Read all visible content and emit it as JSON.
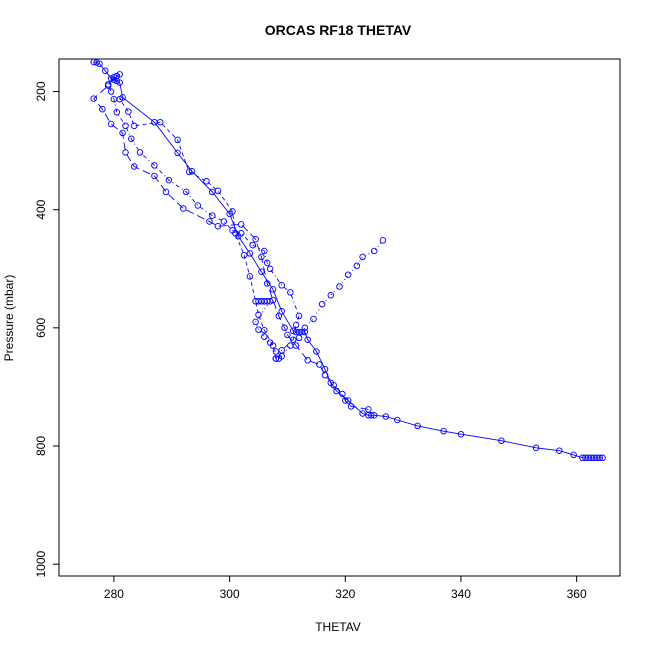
{
  "chart_data": {
    "type": "scatter",
    "title": "ORCAS RF18 THETAV",
    "xlabel": "THETAV",
    "ylabel": "Pressure (mbar)",
    "xlim": [
      270.5,
      367.5
    ],
    "ylim": [
      1020,
      145
    ],
    "y_reversed": true,
    "x_ticks": [
      280,
      300,
      320,
      340,
      360
    ],
    "y_ticks": [
      200,
      400,
      600,
      800,
      1000
    ],
    "x_tick_labels": [
      "280",
      "300",
      "320",
      "340",
      "360"
    ],
    "y_tick_labels": [
      "200",
      "400",
      "600",
      "800",
      "1000"
    ],
    "grid": false,
    "legend": "none",
    "series": [
      {
        "color": "#0000ff",
        "line_style": "solid",
        "marker": "open-circle",
        "points": [
          [
            364.5,
            820
          ],
          [
            364.0,
            820
          ],
          [
            363.5,
            820
          ],
          [
            363.0,
            820
          ],
          [
            362.5,
            820
          ],
          [
            362.0,
            820
          ],
          [
            361.5,
            820
          ],
          [
            361.0,
            820
          ],
          [
            359.5,
            815
          ],
          [
            357.0,
            808
          ],
          [
            353.0,
            803
          ],
          [
            347.0,
            791
          ],
          [
            340.0,
            780
          ],
          [
            337.0,
            775
          ],
          [
            332.5,
            766
          ],
          [
            329.0,
            756
          ],
          [
            327.0,
            750
          ],
          [
            325.0,
            748
          ],
          [
            324.5,
            748
          ],
          [
            324.0,
            748
          ],
          [
            323.0,
            745
          ],
          [
            320.5,
            723
          ],
          [
            318.5,
            707
          ],
          [
            317.5,
            693
          ],
          [
            316.5,
            670
          ],
          [
            315.0,
            640
          ],
          [
            313.5,
            620
          ],
          [
            313.0,
            607
          ],
          [
            312.5,
            607
          ],
          [
            312.0,
            607
          ],
          [
            311.5,
            607
          ],
          [
            311.0,
            605
          ],
          [
            309.0,
            572
          ],
          [
            307.5,
            535
          ],
          [
            305.5,
            505
          ],
          [
            303.5,
            474
          ],
          [
            301.5,
            445
          ],
          [
            300.0,
            407
          ],
          [
            297.0,
            370
          ],
          [
            293.5,
            335
          ],
          [
            291.0,
            304
          ],
          [
            287.0,
            252
          ],
          [
            281.5,
            210
          ],
          [
            281.0,
            185
          ],
          [
            280.5,
            182
          ],
          [
            280.0,
            180
          ],
          [
            279.5,
            178
          ],
          [
            278.5,
            165
          ],
          [
            277.5,
            153
          ],
          [
            277.0,
            151
          ],
          [
            276.5,
            150
          ]
        ]
      },
      {
        "color": "#0000ff",
        "line_style": "dashed",
        "marker": "open-circle",
        "points": [
          [
            308.0,
            652
          ],
          [
            307.5,
            630
          ],
          [
            306.0,
            604
          ],
          [
            305.0,
            578
          ],
          [
            304.5,
            555
          ],
          [
            303.5,
            513
          ],
          [
            302.5,
            477
          ],
          [
            301.0,
            440
          ],
          [
            300.5,
            403
          ],
          [
            298.0,
            368
          ],
          [
            296.0,
            352
          ],
          [
            293.0,
            336
          ],
          [
            291.0,
            282
          ],
          [
            288.0,
            252
          ],
          [
            283.5,
            258
          ],
          [
            282.5,
            234
          ],
          [
            281.0,
            213
          ]
        ]
      },
      {
        "color": "#0000ff",
        "line_style": "longdash",
        "marker": "open-circle",
        "points": [
          [
            324.0,
            738
          ],
          [
            321.0,
            733
          ],
          [
            320.0,
            723
          ],
          [
            319.5,
            712
          ],
          [
            318.0,
            697
          ],
          [
            316.5,
            680
          ],
          [
            315.5,
            662
          ],
          [
            313.5,
            655
          ],
          [
            311.5,
            630
          ],
          [
            310.0,
            612
          ],
          [
            309.5,
            600
          ],
          [
            308.5,
            580
          ],
          [
            307.5,
            553
          ],
          [
            306.5,
            525
          ],
          [
            305.5,
            480
          ],
          [
            304.5,
            450
          ],
          [
            302.0,
            425
          ],
          [
            298.0,
            428
          ],
          [
            296.5,
            420
          ],
          [
            292.0,
            398
          ],
          [
            289.0,
            370
          ],
          [
            287.0,
            343
          ],
          [
            283.5,
            327
          ],
          [
            282.0,
            303
          ],
          [
            281.5,
            270
          ],
          [
            279.5,
            255
          ],
          [
            278.0,
            230
          ],
          [
            276.5,
            212
          ],
          [
            279.0,
            190
          ],
          [
            280.0,
            176
          ],
          [
            280.5,
            174
          ],
          [
            281.0,
            171
          ]
        ]
      },
      {
        "color": "#0000ff",
        "line_style": "dotdash",
        "marker": "open-circle",
        "points": [
          [
            308.0,
            652
          ],
          [
            308.5,
            652
          ],
          [
            309.0,
            638
          ],
          [
            311.0,
            620
          ],
          [
            311.5,
            595
          ],
          [
            312.0,
            580
          ],
          [
            310.5,
            540
          ],
          [
            309.0,
            528
          ],
          [
            307.0,
            500
          ],
          [
            306.5,
            490
          ],
          [
            306.0,
            470
          ],
          [
            304.0,
            460
          ],
          [
            302.0,
            440
          ],
          [
            300.5,
            435
          ],
          [
            299.0,
            420
          ],
          [
            297.0,
            410
          ],
          [
            294.5,
            393
          ],
          [
            292.5,
            370
          ],
          [
            289.5,
            350
          ],
          [
            287.0,
            325
          ],
          [
            284.5,
            303
          ],
          [
            283.0,
            280
          ],
          [
            282.0,
            258
          ],
          [
            280.5,
            235
          ],
          [
            280.0,
            213
          ],
          [
            279.5,
            200
          ],
          [
            279.0,
            188
          ]
        ]
      },
      {
        "color": "#0000ff",
        "line_style": "dotted",
        "marker": "open-circle",
        "points": [
          [
            305.0,
            555
          ],
          [
            305.5,
            555
          ],
          [
            306.0,
            555
          ],
          [
            306.5,
            555
          ],
          [
            307.0,
            555
          ],
          [
            304.5,
            590
          ],
          [
            305.0,
            603
          ],
          [
            306.0,
            615
          ],
          [
            307.0,
            625
          ],
          [
            308.0,
            640
          ],
          [
            309.0,
            648
          ],
          [
            310.5,
            630
          ],
          [
            312.0,
            617
          ],
          [
            313.0,
            600
          ],
          [
            314.5,
            585
          ],
          [
            316.0,
            560
          ],
          [
            317.5,
            545
          ],
          [
            319.0,
            530
          ],
          [
            320.5,
            510
          ],
          [
            322.0,
            495
          ],
          [
            323.0,
            480
          ],
          [
            325.0,
            470
          ],
          [
            326.5,
            452
          ]
        ]
      }
    ]
  }
}
